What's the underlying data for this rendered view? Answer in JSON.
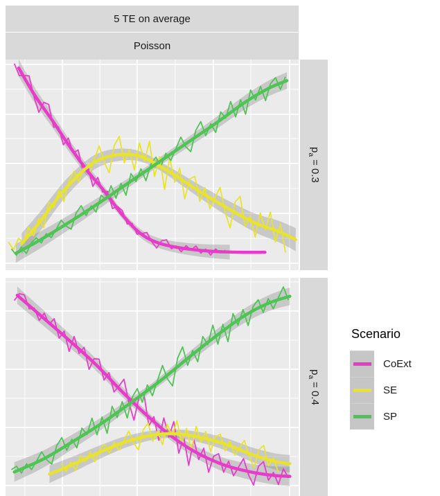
{
  "facets": {
    "col_strips": [
      "5 TE on average",
      "Poisson"
    ],
    "row_strips": [
      {
        "base": "p",
        "sub": "a",
        "rest": "= 0.3",
        "label": "p_a = 0.3"
      },
      {
        "base": "p",
        "sub": "a",
        "rest": "= 0.4",
        "label": "p_a = 0.4"
      }
    ]
  },
  "legend": {
    "title": "Scenario",
    "entries": [
      {
        "label": "CoExt",
        "color": "#E83BC9"
      },
      {
        "label": "SE",
        "color": "#E8E32D"
      },
      {
        "label": "SP",
        "color": "#4EC455"
      }
    ]
  },
  "colors": {
    "panel_bg": "#EBEBEB",
    "strip_bg": "#D9D9D9",
    "grid": "#FFFFFF",
    "ribbon": "#7F7F7F",
    "ribbon_opacity": 0.32,
    "legend_key_bg": "#C6C6C6",
    "text": "#1A1A1A",
    "coext": "#E83BC9",
    "se": "#E8E32D",
    "sp": "#4EC455"
  },
  "noise_pattern": [
    0.35,
    -0.55,
    0.15,
    0.85,
    -0.25,
    -0.95,
    0.55,
    1.0,
    -0.45,
    0.25,
    -0.75,
    0.65,
    -0.15,
    0.9,
    -0.65,
    0.45,
    -1.0,
    0.7,
    -0.35,
    0.5,
    -0.85,
    0.3,
    0.6,
    -0.5
  ],
  "chart_data": [
    {
      "type": "line",
      "facet_col": "5 TE on average",
      "facet_subcol": "Poisson",
      "facet_row": "p_a = 0.3",
      "xlabel": "",
      "ylabel": "",
      "x_range": [
        0,
        1
      ],
      "y_range": [
        0,
        1
      ],
      "grid": {
        "major_x": [
          0.194,
          0.449,
          0.709,
          0.969
        ],
        "minor_x": [
          0.066,
          0.322,
          0.579,
          0.837
        ],
        "major_y_top": [
          0.023,
          0.26,
          0.493,
          0.73,
          0.967
        ],
        "minor_y_top": [
          0.141,
          0.375,
          0.612,
          0.849
        ]
      },
      "series": [
        {
          "name": "CoExt",
          "color": "#E83BC9",
          "smooth": [
            [
              0.045,
              0.96
            ],
            [
              0.1,
              0.83
            ],
            [
              0.165,
              0.7
            ],
            [
              0.22,
              0.585
            ],
            [
              0.28,
              0.47
            ],
            [
              0.34,
              0.37
            ],
            [
              0.4,
              0.26
            ],
            [
              0.46,
              0.175
            ],
            [
              0.52,
              0.13
            ],
            [
              0.6,
              0.105
            ],
            [
              0.7,
              0.09
            ],
            [
              0.8,
              0.085
            ],
            [
              0.885,
              0.085
            ]
          ],
          "ribbon": {
            "x0": 0.045,
            "x1": 0.765,
            "w": [
              0.04,
              0.018,
              0.035
            ]
          },
          "noisy": {
            "x0": 0.03,
            "x1": 0.75,
            "n": 44,
            "amp": [
              0.06,
              0.035,
              0.015
            ],
            "phase": 0
          }
        },
        {
          "name": "SE",
          "color": "#E8E32D",
          "smooth": [
            [
              0.055,
              0.125
            ],
            [
              0.12,
              0.235
            ],
            [
              0.2,
              0.38
            ],
            [
              0.28,
              0.49
            ],
            [
              0.34,
              0.535
            ],
            [
              0.41,
              0.55
            ],
            [
              0.47,
              0.535
            ],
            [
              0.55,
              0.475
            ],
            [
              0.65,
              0.385
            ],
            [
              0.75,
              0.3
            ],
            [
              0.85,
              0.225
            ],
            [
              0.93,
              0.185
            ],
            [
              0.99,
              0.145
            ]
          ],
          "ribbon": {
            "x0": 0.055,
            "x1": 0.99,
            "w": [
              0.05,
              0.02,
              0.055
            ]
          },
          "noisy": {
            "x0": 0.01,
            "x1": 0.955,
            "n": 56,
            "amp": [
              0.035,
              0.1,
              0.085
            ],
            "phase": 9
          }
        },
        {
          "name": "SP",
          "color": "#4EC455",
          "smooth": [
            [
              0.035,
              0.08
            ],
            [
              0.12,
              0.145
            ],
            [
              0.22,
              0.23
            ],
            [
              0.32,
              0.32
            ],
            [
              0.42,
              0.415
            ],
            [
              0.52,
              0.51
            ],
            [
              0.62,
              0.605
            ],
            [
              0.72,
              0.7
            ],
            [
              0.82,
              0.8
            ],
            [
              0.9,
              0.865
            ],
            [
              0.96,
              0.9
            ]
          ],
          "ribbon": {
            "x0": 0.035,
            "x1": 0.96,
            "w": [
              0.045,
              0.018,
              0.04
            ]
          },
          "noisy": {
            "x0": 0.02,
            "x1": 0.955,
            "n": 56,
            "amp": [
              0.03,
              0.055,
              0.06
            ],
            "phase": 17
          }
        }
      ]
    },
    {
      "type": "line",
      "facet_col": "5 TE on average",
      "facet_subcol": "Poisson",
      "facet_row": "p_a = 0.4",
      "xlabel": "",
      "ylabel": "",
      "x_range": [
        0,
        1
      ],
      "y_range": [
        0,
        1
      ],
      "grid": {
        "major_x": [
          0.194,
          0.449,
          0.709,
          0.969
        ],
        "minor_x": [
          0.066,
          0.322,
          0.579,
          0.837
        ],
        "major_y_top": [
          0.152,
          0.419,
          0.686,
          0.952
        ],
        "minor_y_top": [
          0.019,
          0.286,
          0.552,
          0.819
        ]
      },
      "series": [
        {
          "name": "CoExt",
          "color": "#E83BC9",
          "smooth": [
            [
              0.04,
              0.92
            ],
            [
              0.13,
              0.815
            ],
            [
              0.22,
              0.71
            ],
            [
              0.31,
              0.6
            ],
            [
              0.4,
              0.475
            ],
            [
              0.49,
              0.36
            ],
            [
              0.57,
              0.27
            ],
            [
              0.65,
              0.2
            ],
            [
              0.74,
              0.145
            ],
            [
              0.83,
              0.112
            ],
            [
              0.91,
              0.095
            ],
            [
              0.97,
              0.09
            ]
          ],
          "ribbon": {
            "x0": 0.04,
            "x1": 0.97,
            "w": [
              0.04,
              0.018,
              0.045
            ]
          },
          "noisy": {
            "x0": 0.03,
            "x1": 0.965,
            "n": 56,
            "amp": [
              0.025,
              0.09,
              0.05
            ],
            "phase": 5
          }
        },
        {
          "name": "SE",
          "color": "#E8E32D",
          "smooth": [
            [
              0.15,
              0.1
            ],
            [
              0.23,
              0.145
            ],
            [
              0.32,
              0.2
            ],
            [
              0.41,
              0.248
            ],
            [
              0.5,
              0.278
            ],
            [
              0.58,
              0.285
            ],
            [
              0.66,
              0.27
            ],
            [
              0.75,
              0.238
            ],
            [
              0.84,
              0.19
            ],
            [
              0.92,
              0.158
            ],
            [
              0.97,
              0.148
            ]
          ],
          "ribbon": {
            "x0": 0.15,
            "x1": 0.97,
            "w": [
              0.04,
              0.018,
              0.04
            ]
          },
          "noisy": {
            "x0": 0.19,
            "x1": 0.93,
            "n": 46,
            "amp": [
              0.028,
              0.068,
              0.058
            ],
            "phase": 13
          }
        },
        {
          "name": "SP",
          "color": "#4EC455",
          "smooth": [
            [
              0.03,
              0.11
            ],
            [
              0.13,
              0.17
            ],
            [
              0.23,
              0.25
            ],
            [
              0.33,
              0.335
            ],
            [
              0.43,
              0.43
            ],
            [
              0.53,
              0.53
            ],
            [
              0.63,
              0.64
            ],
            [
              0.73,
              0.745
            ],
            [
              0.82,
              0.83
            ],
            [
              0.9,
              0.885
            ],
            [
              0.97,
              0.915
            ]
          ],
          "ribbon": {
            "x0": 0.03,
            "x1": 0.97,
            "w": [
              0.045,
              0.018,
              0.04
            ]
          },
          "noisy": {
            "x0": 0.02,
            "x1": 0.965,
            "n": 56,
            "amp": [
              0.035,
              0.075,
              0.06
            ],
            "phase": 21
          }
        }
      ]
    }
  ]
}
